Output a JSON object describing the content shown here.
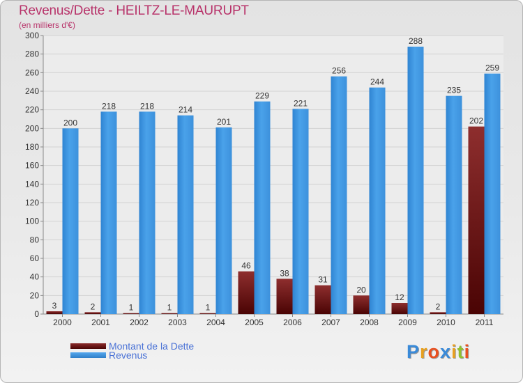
{
  "chart_data": {
    "type": "bar",
    "title": "Revenus/Dette - HEILTZ-LE-MAURUPT",
    "subtitle": "(en milliers d'€)",
    "categories": [
      "2000",
      "2001",
      "2002",
      "2003",
      "2004",
      "2005",
      "2006",
      "2007",
      "2008",
      "2009",
      "2010",
      "2011"
    ],
    "series": [
      {
        "name": "Montant de la Dette",
        "values": [
          3,
          2,
          1,
          1,
          1,
          46,
          38,
          31,
          20,
          12,
          2,
          202
        ],
        "color": "#7a1a1a"
      },
      {
        "name": "Revenus",
        "values": [
          200,
          218,
          218,
          214,
          201,
          229,
          221,
          256,
          244,
          288,
          235,
          259
        ],
        "color": "#3f94dc"
      }
    ],
    "ylim": [
      0,
      300
    ],
    "yticks": [
      0,
      20,
      40,
      60,
      80,
      100,
      120,
      140,
      160,
      180,
      200,
      220,
      240,
      260,
      280,
      300
    ],
    "grid": true,
    "legend": "bottom-left"
  },
  "brand": {
    "letters": [
      "P",
      "r",
      "o",
      "x",
      "i",
      "t",
      "i"
    ],
    "colors": [
      "#3a8ad8",
      "#e8a020",
      "#e85020",
      "#3a8ad8",
      "#e8a020",
      "#90c030",
      "#e85020"
    ]
  }
}
